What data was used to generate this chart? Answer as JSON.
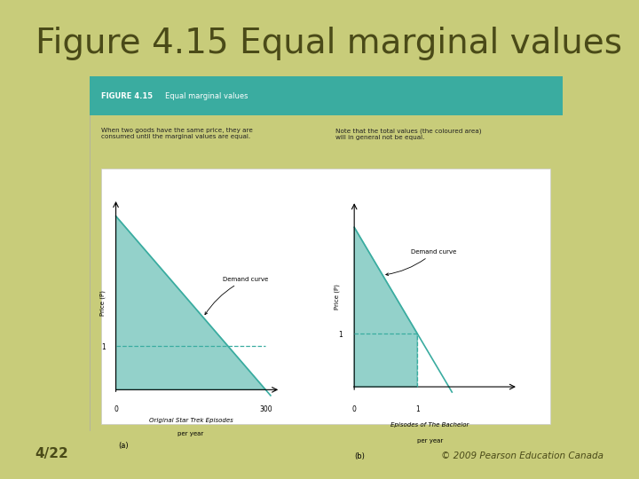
{
  "bg_color": "#c8cc7a",
  "slide_title": "Figure 4.15 Equal marginal values",
  "slide_title_color": "#4a4a18",
  "slide_title_fontsize": 28,
  "inner_bg": "#ffffff",
  "outer_panel_bg": "#dde8c8",
  "header_bg": "#3aaca0",
  "header_text_left": "FIGURE 4.15",
  "header_text_right": "Equal marginal values",
  "header_text_color": "#ffffff",
  "left_desc": "When two goods have the same price, they are\nconsumed until the marginal values are equal.",
  "right_desc": "Note that the total values (the coloured area)\nwill in general not be equal.",
  "teal_color": "#3aaca0",
  "dashed_color": "#3aaca0",
  "fill_color": "#3aaca0",
  "fill_alpha": 0.55,
  "footer_left": "4/22",
  "footer_right": "© 2009 Pearson Education Canada",
  "footer_color": "#4a4a18"
}
